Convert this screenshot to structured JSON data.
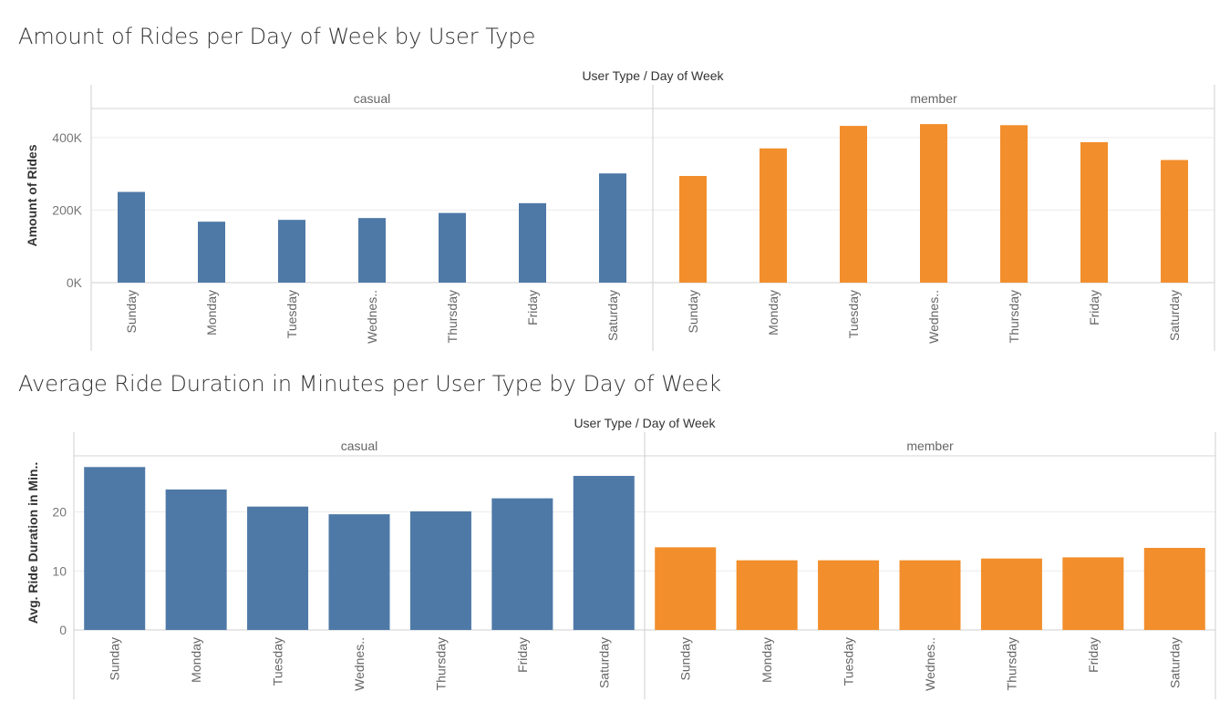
{
  "chart_data": [
    {
      "type": "bar",
      "title": "Amount of Rides per Day of Week by User Type",
      "header": "User Type / Day of Week",
      "ylabel": "Amount of Rides",
      "ylim": [
        0,
        480000
      ],
      "yticks": [
        0,
        200000,
        400000
      ],
      "ytick_labels": [
        "0K",
        "200K",
        "400K"
      ],
      "grid": true,
      "panels": [
        {
          "name": "casual",
          "color": "#4e79a7",
          "categories": [
            "Sunday",
            "Monday",
            "Tuesday",
            "Wednes..",
            "Thursday",
            "Friday",
            "Saturday"
          ],
          "values": [
            250000,
            168000,
            173000,
            178000,
            192000,
            219000,
            301000
          ]
        },
        {
          "name": "member",
          "color": "#f28e2b",
          "categories": [
            "Sunday",
            "Monday",
            "Tuesday",
            "Wednes..",
            "Thursday",
            "Friday",
            "Saturday"
          ],
          "values": [
            294000,
            370000,
            432000,
            437000,
            434000,
            387000,
            338000
          ]
        }
      ]
    },
    {
      "type": "bar",
      "title": "Average Ride Duration in Minutes per User Type by Day of  Week",
      "header": "User Type / Day of Week",
      "ylabel": "Avg. Ride Duration in Min..",
      "ylim": [
        0,
        29.5
      ],
      "yticks": [
        0,
        10,
        20
      ],
      "ytick_labels": [
        "0",
        "10",
        "20"
      ],
      "grid": true,
      "panels": [
        {
          "name": "casual",
          "color": "#4e79a7",
          "categories": [
            "Sunday",
            "Monday",
            "Tuesday",
            "Wednes..",
            "Thursday",
            "Friday",
            "Saturday"
          ],
          "values": [
            27.6,
            23.8,
            20.9,
            19.6,
            20.1,
            22.3,
            26.1
          ]
        },
        {
          "name": "member",
          "color": "#f28e2b",
          "categories": [
            "Sunday",
            "Monday",
            "Tuesday",
            "Wednes..",
            "Thursday",
            "Friday",
            "Saturday"
          ],
          "values": [
            14.0,
            11.8,
            11.8,
            11.8,
            12.1,
            12.3,
            13.9
          ]
        }
      ]
    }
  ]
}
